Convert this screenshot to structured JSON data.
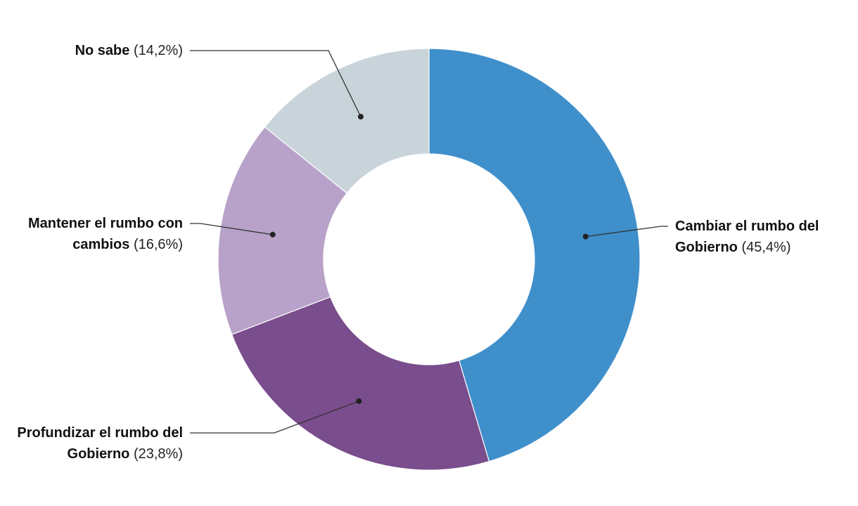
{
  "chart_data": {
    "type": "donut",
    "categories": [
      "Cambiar el rumbo del Gobierno",
      "Profundizar el rumbo del Gobierno",
      "Mantener el rumbo con cambios",
      "No sabe"
    ],
    "values": [
      45.4,
      23.8,
      16.6,
      14.2
    ],
    "value_labels": [
      "(45,4%)",
      "(23,8%)",
      "(16,6%)",
      "(14,2%)"
    ],
    "colors": [
      "#3f8fcb",
      "#7a4d8c",
      "#b8a2c9",
      "#c8d3da"
    ]
  }
}
